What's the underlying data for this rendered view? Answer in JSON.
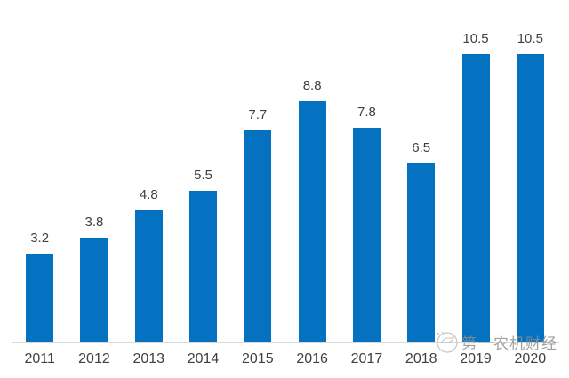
{
  "chart_data": {
    "type": "bar",
    "title": "",
    "xlabel": "",
    "ylabel": "",
    "categories": [
      "2011",
      "2012",
      "2013",
      "2014",
      "2015",
      "2016",
      "2017",
      "2018",
      "2019",
      "2020"
    ],
    "values": [
      3.2,
      3.8,
      4.8,
      5.5,
      7.7,
      8.8,
      7.8,
      6.5,
      10.5,
      10.5
    ],
    "labels": [
      "3.2",
      "3.8",
      "4.8",
      "5.5",
      "7.7",
      "8.8",
      "7.8",
      "6.5",
      "10.5",
      "10.5"
    ],
    "ylim": [
      0,
      10.5
    ],
    "grid": false,
    "legend": false,
    "bar_color": "#0571C1",
    "value_label_color": "#404040",
    "tick_label_color": "#404040",
    "axis_line_color": "#D9D9D9"
  },
  "watermark": {
    "text": "第一农机财经",
    "logo_icon": "bird-circle-logo",
    "color": "#8F8F8F"
  }
}
